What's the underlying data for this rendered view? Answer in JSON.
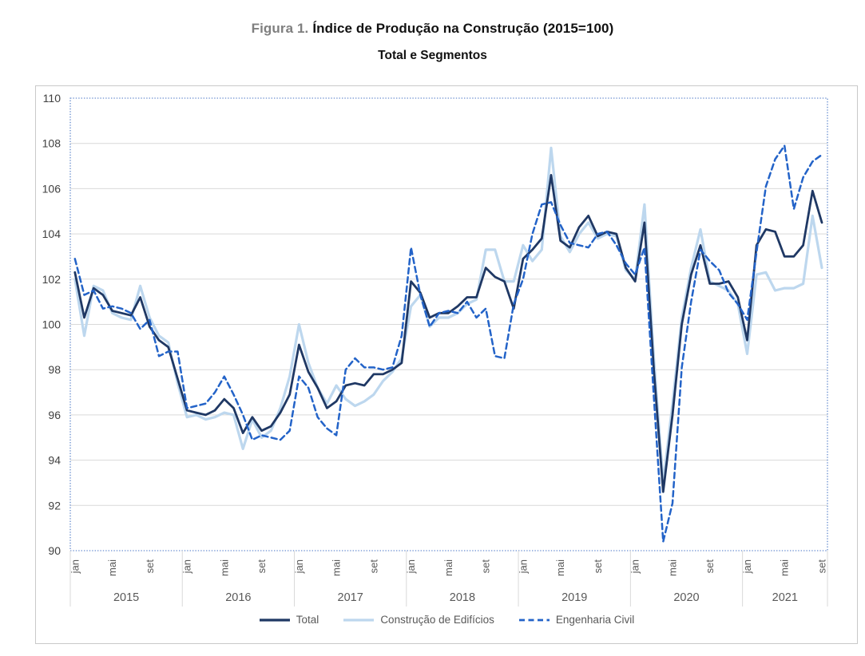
{
  "title": {
    "prefix": "Figura 1.",
    "main": "Índice de Produção na Construção (2015=100)",
    "subtitle": "Total e Segmentos"
  },
  "colors": {
    "total": "#1F3864",
    "edificios": "#BDD7EE",
    "engenharia": "#2363C8",
    "grid": "#D9D9D9",
    "separator": "#D9D9D9",
    "plot_border": "#4472C4",
    "frame": "#C9C9C9",
    "y_label_text": "#404040",
    "x_label_text": "#595959"
  },
  "chart_data": {
    "type": "line",
    "title": "Índice de Produção na Construção (2015=100) — Total e Segmentos",
    "ylabel": "",
    "xlabel": "",
    "ylim": [
      90,
      110
    ],
    "y_tick_step": 2,
    "y_tick_labels": [
      "90",
      "92",
      "94",
      "96",
      "98",
      "100",
      "102",
      "104",
      "106",
      "108",
      "110"
    ],
    "grid": "horizontal",
    "legend_position": "bottom",
    "x_axis": {
      "years": [
        "2015",
        "2016",
        "2017",
        "2018",
        "2019",
        "2020",
        "2021"
      ],
      "months_per_year": [
        12,
        12,
        12,
        12,
        12,
        12,
        9
      ],
      "month_tick_labels": [
        "jan",
        "mai",
        "set"
      ],
      "month_tick_offsets": [
        0,
        4,
        8
      ]
    },
    "series": [
      {
        "name": "Total",
        "style": "solid",
        "color": "#1F3864",
        "width": 2.8,
        "values": [
          102.3,
          100.3,
          101.6,
          101.3,
          100.6,
          100.5,
          100.4,
          101.2,
          99.9,
          99.3,
          99.0,
          97.6,
          96.2,
          96.1,
          96.0,
          96.2,
          96.7,
          96.3,
          95.2,
          95.9,
          95.3,
          95.5,
          96.1,
          96.9,
          99.1,
          97.9,
          97.2,
          96.3,
          96.6,
          97.3,
          97.4,
          97.3,
          97.8,
          97.8,
          98.0,
          98.3,
          101.9,
          101.4,
          100.3,
          100.5,
          100.5,
          100.8,
          101.2,
          101.2,
          102.5,
          102.1,
          101.9,
          100.7,
          102.9,
          103.3,
          103.8,
          106.6,
          103.7,
          103.4,
          104.3,
          104.8,
          103.9,
          104.1,
          104.0,
          102.5,
          101.9,
          104.5,
          98.0,
          92.6,
          96.0,
          100.0,
          102.2,
          103.5,
          101.8,
          101.8,
          101.9,
          101.2,
          99.3,
          103.5,
          104.2,
          104.1,
          103.0,
          103.0,
          103.5,
          105.9,
          104.5
        ]
      },
      {
        "name": "Construção de Edifícios",
        "style": "solid",
        "color": "#BDD7EE",
        "width": 3.2,
        "values": [
          102.0,
          99.5,
          101.7,
          101.5,
          100.5,
          100.3,
          100.2,
          101.7,
          100.3,
          99.5,
          99.2,
          97.4,
          95.9,
          96.0,
          95.8,
          95.9,
          96.1,
          96.0,
          94.5,
          95.8,
          95.0,
          95.3,
          96.3,
          97.7,
          100.0,
          98.3,
          97.2,
          96.5,
          97.3,
          96.7,
          96.4,
          96.6,
          96.9,
          97.5,
          97.9,
          98.5,
          100.8,
          101.3,
          99.9,
          100.3,
          100.3,
          100.5,
          100.9,
          101.1,
          103.3,
          103.3,
          101.9,
          101.9,
          103.5,
          102.8,
          103.3,
          107.8,
          103.9,
          103.2,
          104.0,
          104.5,
          103.8,
          104.0,
          103.9,
          102.4,
          102.0,
          105.3,
          98.5,
          93.0,
          96.5,
          100.3,
          102.5,
          104.2,
          101.9,
          101.7,
          101.5,
          100.9,
          98.7,
          102.2,
          102.3,
          101.5,
          101.6,
          101.6,
          101.8,
          104.8,
          102.5
        ]
      },
      {
        "name": "Engenharia Civil",
        "style": "dashed",
        "color": "#2363C8",
        "width": 2.5,
        "values": [
          102.9,
          101.3,
          101.5,
          100.7,
          100.8,
          100.7,
          100.5,
          99.8,
          100.2,
          98.6,
          98.8,
          98.8,
          96.3,
          96.4,
          96.5,
          97.0,
          97.7,
          96.9,
          96.0,
          94.9,
          95.1,
          95.0,
          94.9,
          95.3,
          97.7,
          97.2,
          95.9,
          95.4,
          95.1,
          98.0,
          98.5,
          98.1,
          98.1,
          98.0,
          98.1,
          99.5,
          103.4,
          101.3,
          99.9,
          100.5,
          100.6,
          100.5,
          101.0,
          100.3,
          100.7,
          98.6,
          98.5,
          100.9,
          102.0,
          104.0,
          105.3,
          105.4,
          104.4,
          103.6,
          103.5,
          103.4,
          104.0,
          104.1,
          103.5,
          102.7,
          102.2,
          103.4,
          96.8,
          90.4,
          92.1,
          98.1,
          101.0,
          103.3,
          102.8,
          102.4,
          101.4,
          100.9,
          100.2,
          103.2,
          106.1,
          107.3,
          107.9,
          105.1,
          106.5,
          107.2,
          107.5
        ]
      }
    ]
  }
}
